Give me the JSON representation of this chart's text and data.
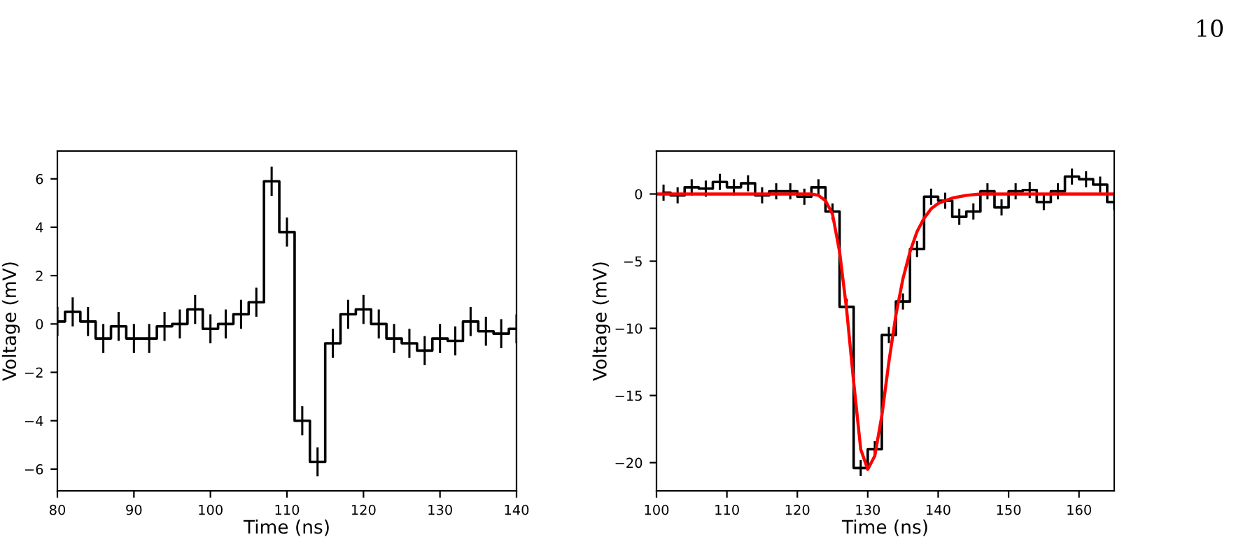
{
  "chart_data": [
    {
      "type": "step",
      "xlabel": "Time (ns)",
      "ylabel": "Voltage (mV)",
      "annotations": [
        "10"
      ],
      "xlim": [
        80,
        140
      ],
      "xticks": [
        80,
        90,
        100,
        110,
        120,
        130,
        140
      ],
      "ylim": [
        -6.9,
        7.15
      ],
      "yticks": [
        {
          "value": -6,
          "label": "−6"
        },
        {
          "value": -4,
          "label": "−4"
        },
        {
          "value": -2,
          "label": "−2"
        },
        0,
        2,
        4,
        6
      ],
      "grid": false,
      "series": [
        {
          "color": "#000000",
          "x": [
            80,
            82,
            84,
            86,
            88,
            90,
            92,
            94,
            96,
            98,
            100,
            102,
            104,
            106,
            108,
            110,
            112,
            114,
            116,
            118,
            120,
            122,
            124,
            126,
            128,
            130,
            132,
            134,
            136,
            138,
            140
          ],
          "values": [
            0.1,
            0.5,
            0.1,
            -0.6,
            -0.1,
            -0.6,
            -0.6,
            -0.1,
            0.0,
            0.6,
            -0.2,
            0.0,
            0.4,
            0.9,
            5.9,
            3.8,
            -4.0,
            -5.7,
            -0.8,
            0.4,
            0.6,
            0.0,
            -0.6,
            -0.8,
            -1.1,
            -0.6,
            -0.7,
            0.1,
            -0.3,
            -0.4,
            -0.2
          ],
          "errors": [
            0.6,
            0.6,
            0.6,
            0.6,
            0.6,
            0.6,
            0.6,
            0.6,
            0.6,
            0.6,
            0.6,
            0.6,
            0.6,
            0.6,
            0.6,
            0.6,
            0.6,
            0.6,
            0.6,
            0.6,
            0.6,
            0.6,
            0.6,
            0.6,
            0.6,
            0.6,
            0.6,
            0.6,
            0.6,
            0.6,
            0.6
          ]
        }
      ]
    },
    {
      "type": "step",
      "xlabel": "Time (ns)",
      "ylabel": "Voltage (mV)",
      "xlim": [
        100,
        165
      ],
      "xticks": [
        100,
        110,
        120,
        130,
        140,
        150,
        160
      ],
      "ylim": [
        -22.1,
        3.2
      ],
      "yticks": [
        {
          "value": -20,
          "label": "−20"
        },
        {
          "value": -15,
          "label": "−15"
        },
        {
          "value": -10,
          "label": "−10"
        },
        {
          "value": -5,
          "label": "−5"
        },
        0
      ],
      "grid": false,
      "series": [
        {
          "color": "#000000",
          "x": [
            101,
            103,
            105,
            107,
            109,
            111,
            113,
            115,
            117,
            119,
            121,
            123,
            125,
            127,
            129,
            131,
            133,
            135,
            137,
            139,
            141,
            143,
            145,
            147,
            149,
            151,
            153,
            155,
            157,
            159,
            161,
            163,
            165
          ],
          "values": [
            0.1,
            -0.1,
            0.5,
            0.4,
            0.9,
            0.5,
            0.8,
            -0.1,
            0.2,
            0.2,
            -0.2,
            0.5,
            -1.3,
            -8.4,
            -20.4,
            -19.0,
            -10.5,
            -8.0,
            -4.1,
            -0.2,
            -0.5,
            -1.7,
            -1.3,
            0.2,
            -1.0,
            0.2,
            0.3,
            -0.6,
            0.2,
            1.3,
            1.1,
            0.7,
            -0.6
          ],
          "errors": [
            0.6,
            0.6,
            0.6,
            0.6,
            0.6,
            0.6,
            0.6,
            0.6,
            0.6,
            0.6,
            0.6,
            0.6,
            0.6,
            0.6,
            0.6,
            0.6,
            0.6,
            0.6,
            0.6,
            0.6,
            0.6,
            0.6,
            0.6,
            0.6,
            0.6,
            0.6,
            0.6,
            0.6,
            0.6,
            0.6,
            0.6,
            0.6,
            0.6
          ]
        },
        {
          "type": "line",
          "color": "#ff0000",
          "x": [
            100,
            110,
            120,
            122,
            123,
            124,
            125,
            126,
            127,
            128,
            129,
            130,
            131,
            132,
            133,
            134,
            135,
            136,
            137,
            138,
            139,
            140,
            142,
            144,
            146,
            150,
            160,
            165
          ],
          "values": [
            0,
            0,
            0,
            0,
            -0.1,
            -0.5,
            -1.5,
            -4.3,
            -8.6,
            -14,
            -19,
            -20.5,
            -19.5,
            -16.5,
            -12.5,
            -9,
            -6.3,
            -4.3,
            -2.8,
            -1.8,
            -1.1,
            -0.7,
            -0.3,
            -0.1,
            0,
            0,
            0,
            0
          ]
        }
      ]
    }
  ]
}
